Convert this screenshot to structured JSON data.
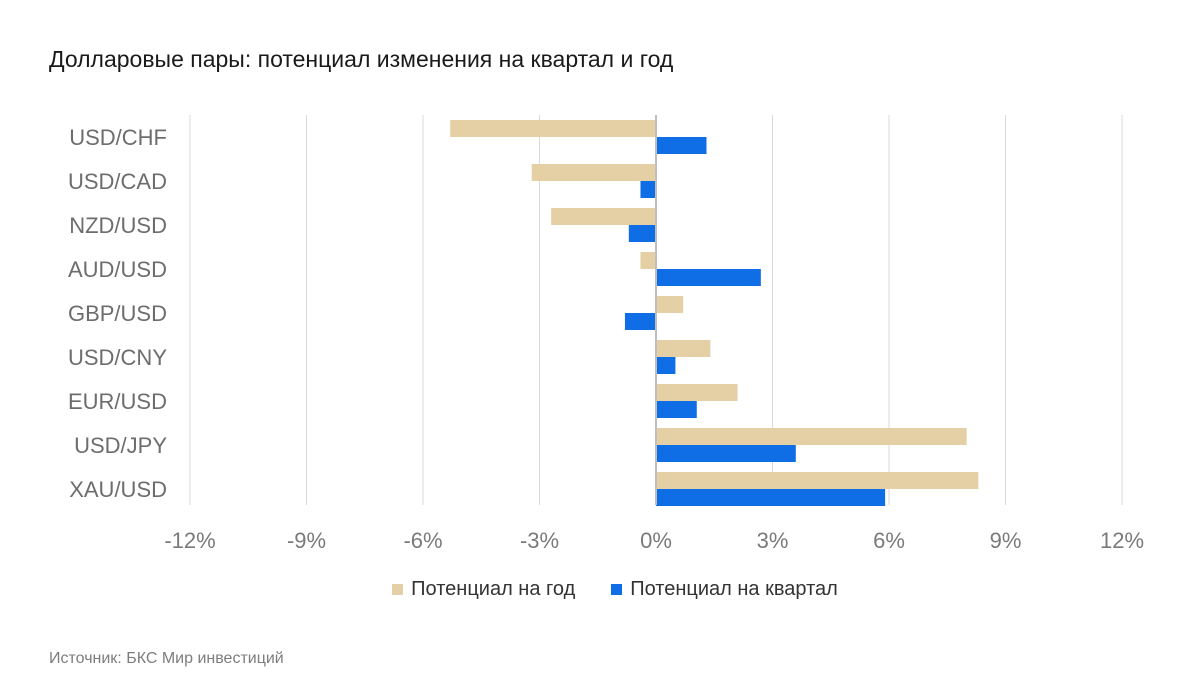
{
  "chart_data": {
    "type": "bar",
    "orientation": "horizontal",
    "title": "Долларовые пары: потенциал изменения на квартал и год",
    "categories": [
      "USD/CHF",
      "USD/CAD",
      "NZD/USD",
      "AUD/USD",
      "GBP/USD",
      "USD/CNY",
      "EUR/USD",
      "USD/JPY",
      "XAU/USD"
    ],
    "series": [
      {
        "name": "Потенциал на год",
        "color": "#e5cfa5",
        "values": [
          -5.3,
          -3.2,
          -2.7,
          -0.4,
          0.7,
          1.4,
          2.1,
          8.0,
          8.3
        ]
      },
      {
        "name": "Потенциал на квартал",
        "color": "#0f6ee6",
        "values": [
          1.3,
          -0.4,
          -0.7,
          2.7,
          -0.8,
          0.5,
          1.05,
          3.6,
          5.9
        ]
      }
    ],
    "xlim": [
      -12,
      12
    ],
    "ticks": [
      -12,
      -9,
      -6,
      -3,
      0,
      3,
      6,
      9,
      12
    ],
    "tick_labels": [
      "-12%",
      "-9%",
      "-6%",
      "-3%",
      "0%",
      "3%",
      "6%",
      "9%",
      "12%"
    ],
    "grid": true,
    "legend_position": "bottom"
  },
  "legend": {
    "year_label": "Потенциал на год",
    "quarter_label": "Потенциал на квартал"
  },
  "source": "Источник: БКС Мир инвестиций"
}
